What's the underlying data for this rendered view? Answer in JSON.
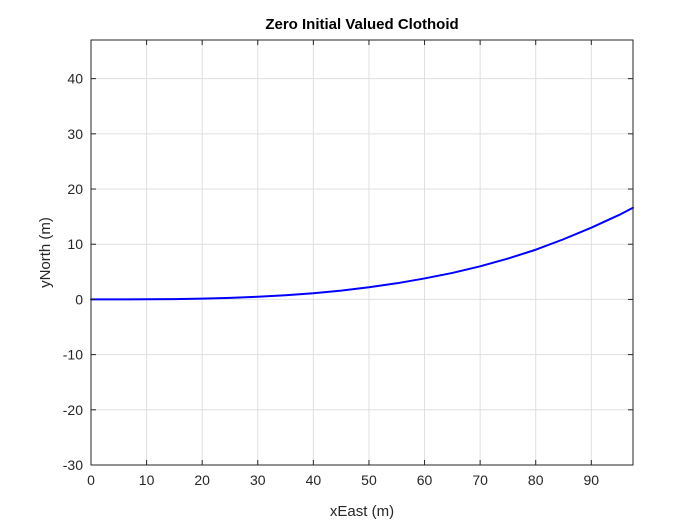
{
  "chart_data": {
    "type": "line",
    "title": "Zero Initial Valued Clothoid",
    "xlabel": "xEast (m)",
    "ylabel": "yNorth (m)",
    "xlim": [
      0,
      97.5
    ],
    "ylim": [
      -30,
      47
    ],
    "xticks": [
      0,
      10,
      20,
      30,
      40,
      50,
      60,
      70,
      80,
      90
    ],
    "yticks": [
      -30,
      -20,
      -10,
      0,
      10,
      20,
      30,
      40
    ],
    "xtick_labels": [
      "0",
      "10",
      "20",
      "30",
      "40",
      "50",
      "60",
      "70",
      "80",
      "90"
    ],
    "ytick_labels": [
      "-30",
      "-20",
      "-10",
      "0",
      "10",
      "20",
      "30",
      "40"
    ],
    "grid": true,
    "series": [
      {
        "color": "#0000ff",
        "x": [
          0,
          5,
          10,
          15,
          20,
          25,
          30,
          35,
          40,
          45,
          50,
          55,
          60,
          65,
          70,
          75,
          80,
          85,
          90,
          95,
          97.5
        ],
        "y": [
          0,
          0.002,
          0.02,
          0.06,
          0.14,
          0.28,
          0.48,
          0.76,
          1.12,
          1.6,
          2.2,
          2.92,
          3.8,
          4.8,
          6.0,
          7.4,
          9.0,
          10.9,
          13.0,
          15.3,
          16.6
        ]
      }
    ]
  }
}
